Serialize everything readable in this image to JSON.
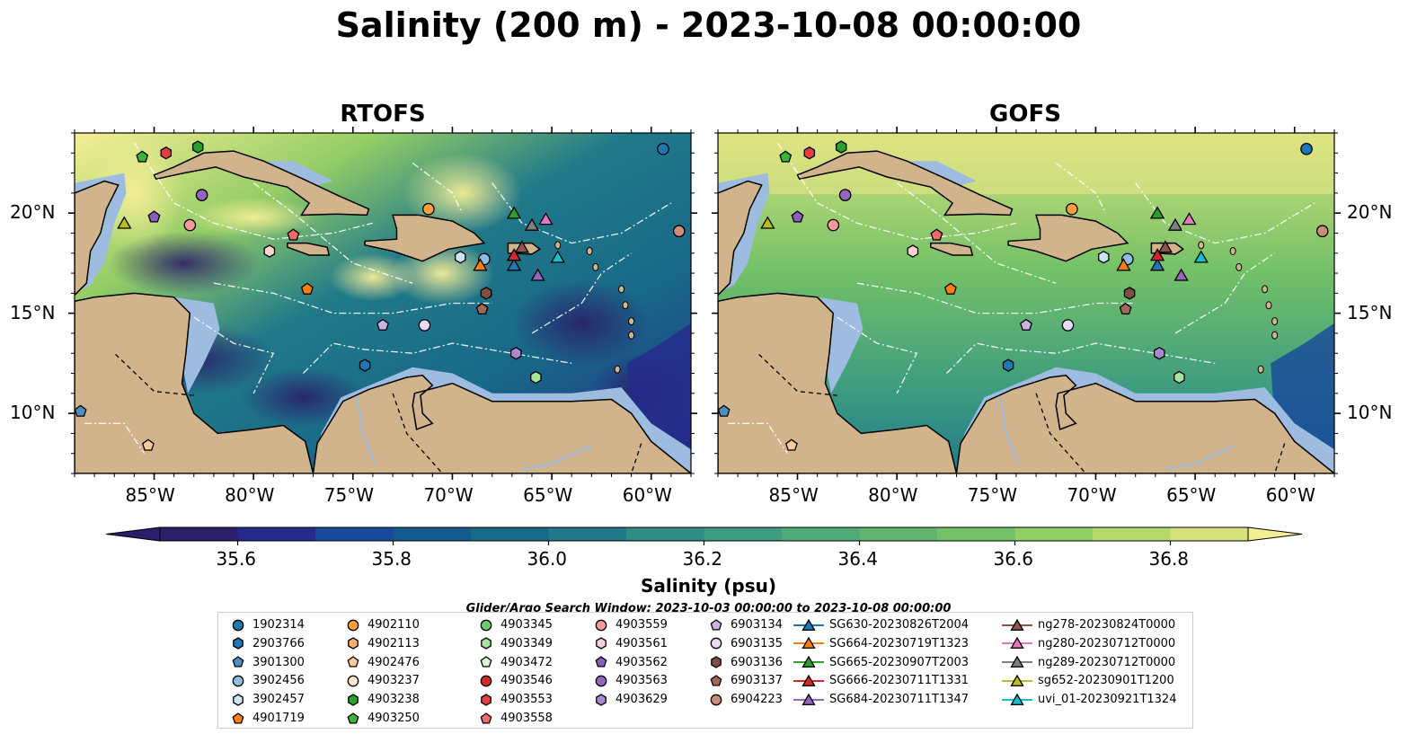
{
  "title": "Salinity (200 m) - 2023-10-08 00:00:00",
  "panels": [
    {
      "title": "RTOFS"
    },
    {
      "title": "GOFS"
    }
  ],
  "axes": {
    "lon_ticks": [
      "85°W",
      "80°W",
      "75°W",
      "70°W",
      "65°W",
      "60°W"
    ],
    "lat_ticks": [
      "20°N",
      "15°N",
      "10°N"
    ],
    "lon_range": [
      -89,
      -58
    ],
    "lat_range": [
      7,
      24
    ]
  },
  "colorbar": {
    "label": "Salinity (psu)",
    "ticks": [
      "35.6",
      "35.8",
      "36.0",
      "36.2",
      "36.4",
      "36.6",
      "36.8"
    ],
    "range": [
      35.5,
      36.9
    ],
    "extend": "both",
    "colors": [
      "#2b1f6b",
      "#262a8c",
      "#18499b",
      "#155a8e",
      "#186888",
      "#217a89",
      "#2f8d86",
      "#3e9c80",
      "#4faa78",
      "#60b46f",
      "#74c168",
      "#93cd66",
      "#b6d96c",
      "#d6e27c",
      "#f6ee95"
    ]
  },
  "colors": {
    "land": "#d2b48c",
    "shelf": "#9dbce0",
    "deep": "#2b1f6b"
  },
  "search_window": "Glider/Argo Search Window: 2023-10-03 00:00:00 to 2023-10-08 00:00:00",
  "legend": [
    {
      "label": "1902314",
      "marker": "circle",
      "color": "#1f77b4"
    },
    {
      "label": "2903766",
      "marker": "hexagon",
      "color": "#1f77b4"
    },
    {
      "label": "3901300",
      "marker": "pentagon",
      "color": "#4f8fbf"
    },
    {
      "label": "3902456",
      "marker": "circle",
      "color": "#8fbde6"
    },
    {
      "label": "3902457",
      "marker": "hexagon",
      "color": "#cde4f5"
    },
    {
      "label": "4901719",
      "marker": "pentagon",
      "color": "#ff7f0e"
    },
    {
      "label": "4902110",
      "marker": "circle",
      "color": "#ff9f40"
    },
    {
      "label": "4902113",
      "marker": "hexagon",
      "color": "#ffb070"
    },
    {
      "label": "4902476",
      "marker": "pentagon",
      "color": "#ffc899"
    },
    {
      "label": "4903237",
      "marker": "circle",
      "color": "#fde7cf"
    },
    {
      "label": "4903238",
      "marker": "hexagon",
      "color": "#2ca02c"
    },
    {
      "label": "4903250",
      "marker": "pentagon",
      "color": "#3cb43c"
    },
    {
      "label": "4903345",
      "marker": "circle",
      "color": "#6fcc6f"
    },
    {
      "label": "4903349",
      "marker": "hexagon",
      "color": "#a6e3a1"
    },
    {
      "label": "4903472",
      "marker": "pentagon",
      "color": "#d8f5d0"
    },
    {
      "label": "4903546",
      "marker": "circle",
      "color": "#d62728"
    },
    {
      "label": "4903553",
      "marker": "hexagon",
      "color": "#e04040"
    },
    {
      "label": "4903558",
      "marker": "pentagon",
      "color": "#f06a6a"
    },
    {
      "label": "4903559",
      "marker": "circle",
      "color": "#f59a9a"
    },
    {
      "label": "4903561",
      "marker": "hexagon",
      "color": "#fbd3d3"
    },
    {
      "label": "4903562",
      "marker": "pentagon",
      "color": "#8a5fc0"
    },
    {
      "label": "4903563",
      "marker": "circle",
      "color": "#9467bd"
    },
    {
      "label": "4903629",
      "marker": "hexagon",
      "color": "#a889cf"
    },
    {
      "label": "6903134",
      "marker": "pentagon",
      "color": "#c9b3e6"
    },
    {
      "label": "6903135",
      "marker": "circle",
      "color": "#e8d9f5"
    },
    {
      "label": "6903136",
      "marker": "hexagon",
      "color": "#7f4f3f"
    },
    {
      "label": "6903137",
      "marker": "pentagon",
      "color": "#a0695a"
    },
    {
      "label": "6904223",
      "marker": "circle",
      "color": "#c98d7a"
    },
    {
      "label": "SG630-20230826T2004",
      "marker": "triangle",
      "color": "#1f77b4"
    },
    {
      "label": "SG664-20230719T1323",
      "marker": "triangle",
      "color": "#ff7f0e"
    },
    {
      "label": "SG665-20230907T2003",
      "marker": "triangle",
      "color": "#2ca02c"
    },
    {
      "label": "SG666-20230711T1331",
      "marker": "triangle",
      "color": "#d62728"
    },
    {
      "label": "SG684-20230711T1347",
      "marker": "triangle",
      "color": "#9467bd"
    },
    {
      "label": "ng278-20230824T0000",
      "marker": "triangle",
      "color": "#8c564b"
    },
    {
      "label": "ng280-20230712T0000",
      "marker": "triangle",
      "color": "#e377c2"
    },
    {
      "label": "ng289-20230712T0000",
      "marker": "triangle",
      "color": "#7f7f7f"
    },
    {
      "label": "sg652-20230901T1200",
      "marker": "triangle",
      "color": "#bcbd22"
    },
    {
      "label": "uvi_01-20230921T1324",
      "marker": "triangle",
      "color": "#17becf"
    }
  ],
  "platforms": [
    {
      "label": "1902314",
      "lon": -59.4,
      "lat": 23.2
    },
    {
      "label": "2903766",
      "lon": -74.4,
      "lat": 12.4
    },
    {
      "label": "3901300",
      "lon": -88.7,
      "lat": 10.1
    },
    {
      "label": "3902456",
      "lon": -68.4,
      "lat": 17.7
    },
    {
      "label": "3902457",
      "lon": -69.6,
      "lat": 17.8
    },
    {
      "label": "4901719",
      "lon": -77.3,
      "lat": 16.2
    },
    {
      "label": "4902110",
      "lon": -71.2,
      "lat": 20.2
    },
    {
      "label": "4902476",
      "lon": -85.3,
      "lat": 8.4
    },
    {
      "label": "4903238",
      "lon": -82.8,
      "lat": 23.3
    },
    {
      "label": "4903250",
      "lon": -85.6,
      "lat": 22.8
    },
    {
      "label": "4903349",
      "lon": -65.8,
      "lat": 11.8
    },
    {
      "label": "4903553",
      "lon": -84.4,
      "lat": 23.0
    },
    {
      "label": "4903558",
      "lon": -78.0,
      "lat": 18.9
    },
    {
      "label": "4903559",
      "lon": -83.2,
      "lat": 19.4
    },
    {
      "label": "4903561",
      "lon": -79.2,
      "lat": 18.1
    },
    {
      "label": "4903562",
      "lon": -85.0,
      "lat": 19.8
    },
    {
      "label": "4903563",
      "lon": -82.6,
      "lat": 20.9
    },
    {
      "label": "4903629",
      "lon": -66.8,
      "lat": 13.0
    },
    {
      "label": "6903134",
      "lon": -73.5,
      "lat": 14.4
    },
    {
      "label": "6903135",
      "lon": -71.4,
      "lat": 14.4
    },
    {
      "label": "6903136",
      "lon": -68.3,
      "lat": 16.0
    },
    {
      "label": "6903137",
      "lon": -68.5,
      "lat": 15.2
    },
    {
      "label": "6904223",
      "lon": -58.6,
      "lat": 19.1
    },
    {
      "label": "SG630-20230826T2004",
      "lon": -66.9,
      "lat": 17.4
    },
    {
      "label": "SG664-20230719T1323",
      "lon": -68.6,
      "lat": 17.4
    },
    {
      "label": "SG665-20230907T2003",
      "lon": -66.9,
      "lat": 20.0
    },
    {
      "label": "SG666-20230711T1331",
      "lon": -66.9,
      "lat": 17.9
    },
    {
      "label": "SG684-20230711T1347",
      "lon": -65.7,
      "lat": 16.9
    },
    {
      "label": "ng278-20230824T0000",
      "lon": -66.5,
      "lat": 18.3
    },
    {
      "label": "ng280-20230712T0000",
      "lon": -65.3,
      "lat": 19.7
    },
    {
      "label": "ng289-20230712T0000",
      "lon": -66.0,
      "lat": 19.4
    },
    {
      "label": "sg652-20230901T1200",
      "lon": -86.5,
      "lat": 19.5
    },
    {
      "label": "uvi_01-20230921T1324",
      "lon": -64.7,
      "lat": 17.8
    }
  ]
}
